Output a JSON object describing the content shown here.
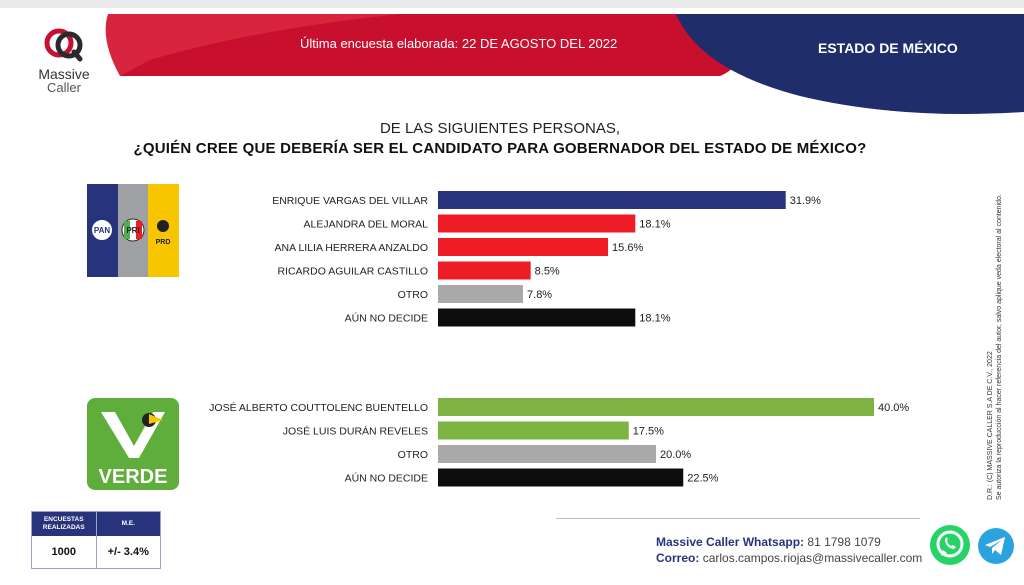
{
  "header": {
    "logo_line1": "Massive",
    "logo_line2": "Caller",
    "survey_date": "Última encuesta elaborada: 22 DE AGOSTO DEL 2022",
    "region": "ESTADO DE MÉXICO"
  },
  "question": {
    "line1": "DE LAS SIGUIENTES PERSONAS,",
    "line2": "¿QUIÉN CREE QUE DEBERÍA SER EL CANDIDATO PARA GOBERNADOR DEL ESTADO DE MÉXICO?"
  },
  "logos": {
    "coalition": {
      "pan": "PAN",
      "pri": "PRI",
      "prd": "PRD"
    },
    "verde": "VERDE"
  },
  "colors": {
    "blue": "#27347c",
    "red": "#ee1c24",
    "gray": "#a9a9a9",
    "black": "#0d0d0d",
    "green": "#7cb342",
    "header_red": "#c8102e",
    "header_navy": "#1f2d6b"
  },
  "chart_data": [
    {
      "type": "bar",
      "orientation": "horizontal",
      "categories": [
        "ENRIQUE VARGAS DEL VILLAR",
        "ALEJANDRA DEL MORAL",
        "ANA LILIA HERRERA ANZALDO",
        "RICARDO AGUILAR CASTILLO",
        "OTRO",
        "AÚN NO DECIDE"
      ],
      "values": [
        31.9,
        18.1,
        15.6,
        8.5,
        7.8,
        18.1
      ],
      "value_labels": [
        "31.9%",
        "18.1%",
        "15.6%",
        "8.5%",
        "7.8%",
        "18.1%"
      ],
      "colors": [
        "#27347c",
        "#ee1c24",
        "#ee1c24",
        "#ee1c24",
        "#a9a9a9",
        "#0d0d0d"
      ]
    },
    {
      "type": "bar",
      "orientation": "horizontal",
      "categories": [
        "JOSÉ ALBERTO COUTTOLENC BUENTELLO",
        "JOSÉ LUIS DURÁN REVELES",
        "OTRO",
        "AÚN NO DECIDE"
      ],
      "values": [
        40.0,
        17.5,
        20.0,
        22.5
      ],
      "value_labels": [
        "40.0%",
        "17.5%",
        "20.0%",
        "22.5%"
      ],
      "colors": [
        "#7cb342",
        "#7cb342",
        "#a9a9a9",
        "#0d0d0d"
      ]
    }
  ],
  "side_note": {
    "line1": "D.R.: (C) MASSIVE CALLER S.A DE C.V., 2022",
    "line2": "Se autoriza la reproducción al hacer referencia del autor, salvo aplique veda electoral al contenido."
  },
  "surveys_box": {
    "col1_header": "ENCUESTAS REALIZADAS",
    "col2_header": "M.E.",
    "count": "1000",
    "margin": "+/- 3.4%"
  },
  "contact": {
    "whatsapp_label": "Massive Caller Whatsapp:",
    "whatsapp_value": "81 1798 1079",
    "email_label": "Correo:",
    "email_value": "carlos.campos.riojas@massivecaller.com"
  }
}
